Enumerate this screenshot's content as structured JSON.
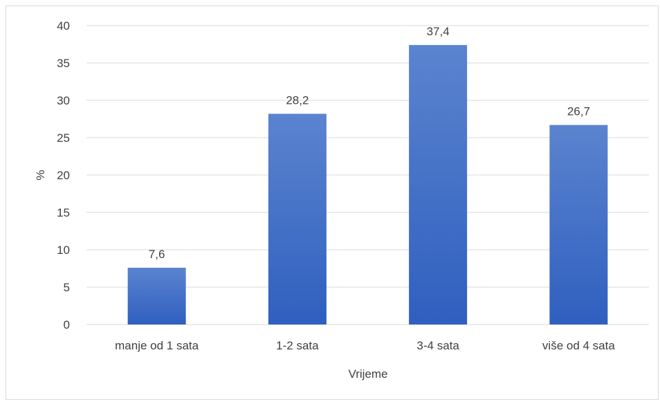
{
  "chart_data": {
    "type": "bar",
    "categories": [
      "manje od 1 sata",
      "1-2 sata",
      "3-4 sata",
      "više od 4 sata"
    ],
    "values": [
      7.6,
      28.2,
      37.4,
      26.7
    ],
    "value_labels": [
      "7,6",
      "28,2",
      "37,4",
      "26,7"
    ],
    "title": "",
    "xlabel": "Vrijeme",
    "ylabel": "%",
    "ylim": [
      0,
      40
    ],
    "yticks": [
      0,
      5,
      10,
      15,
      20,
      25,
      30,
      35,
      40
    ],
    "grid": true,
    "legend": "none",
    "colors": {
      "bar_top": "#5b84cf",
      "bar_bottom": "#2f5fbf",
      "grid": "#d9d9d9",
      "text": "#404040"
    }
  }
}
